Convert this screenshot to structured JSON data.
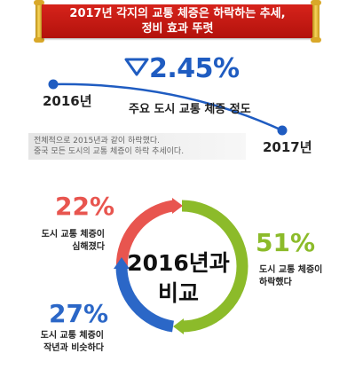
{
  "title": {
    "line1": "2017년 각지의 교통 체증은 하락하는 추세,",
    "line2": "정비 효과 뚜렷"
  },
  "trend": {
    "change": "2.45%",
    "start_year": "2016년",
    "end_year": "2017년",
    "label": "주요 도시 교통 체증 정도",
    "direction": "down",
    "color": "#1f5cc1"
  },
  "note": {
    "line1": "전체적으로 2015년과 같이 하락했다.",
    "line2": "중국 모든 도시의 교통 체증이 하락 추세이다."
  },
  "comparison": {
    "center_line1": "2016년과",
    "center_line2": "비교",
    "segments": [
      {
        "pct": "22%",
        "value": 22,
        "desc_line1": "도시 교통 체증이",
        "desc_line2": "심해졌다",
        "color": "#e8554f"
      },
      {
        "pct": "51%",
        "value": 51,
        "desc_line1": "도시 교통 체증이",
        "desc_line2": "하락했다",
        "color": "#8cbb2a"
      },
      {
        "pct": "27%",
        "value": 27,
        "desc_line1": "도시 교통 체증이",
        "desc_line2": "작년과 비슷하다",
        "color": "#2b67c7"
      }
    ]
  }
}
